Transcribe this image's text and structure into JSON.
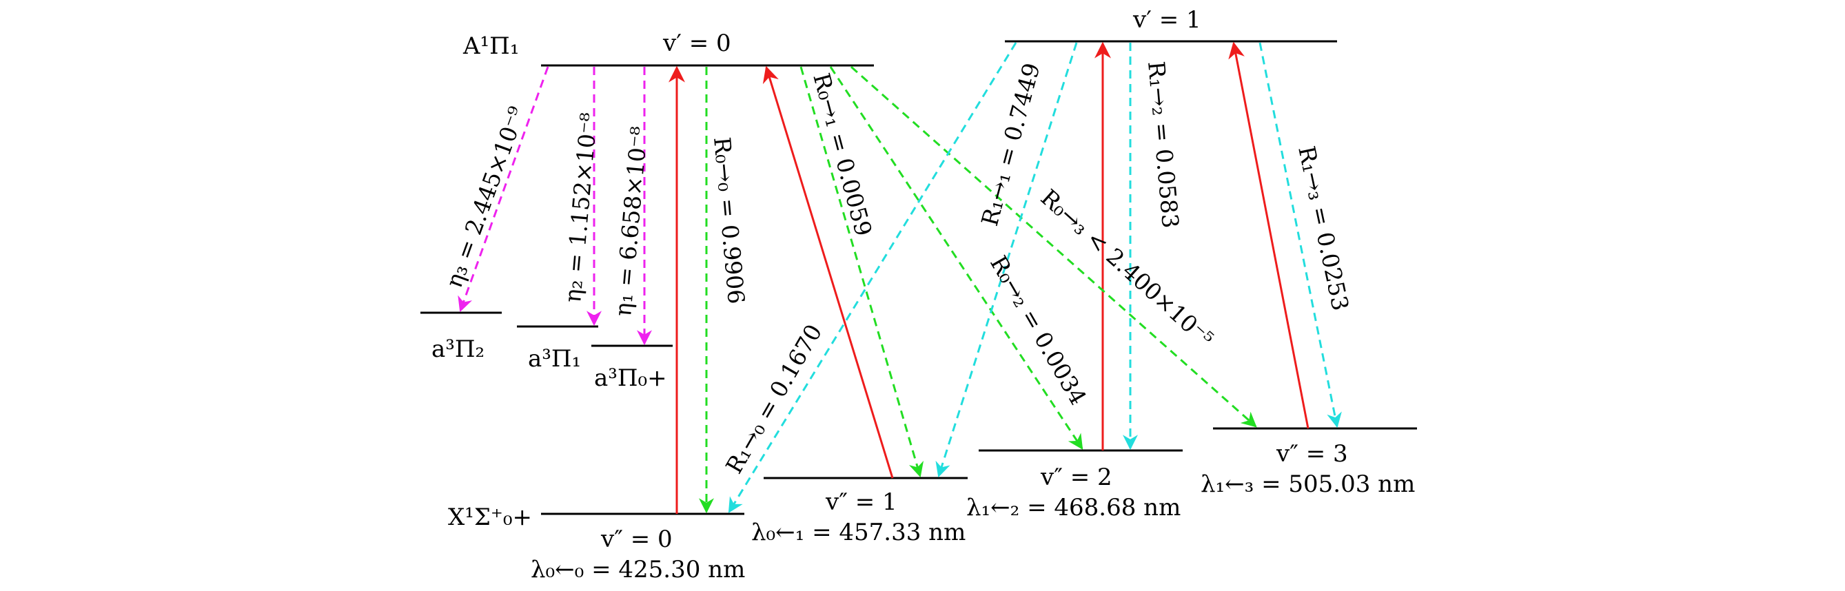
{
  "states": {
    "A": "A¹Π₁",
    "a2": "a³Π₂",
    "a1": "a³Π₁",
    "a0": "a³Π₀+",
    "X": "X¹Σ⁺₀+"
  },
  "levels": {
    "upper0": "v′ = 0",
    "upper1": "v′ = 1",
    "lower0": "v″ = 0",
    "lower1": "v″ = 1",
    "lower2": "v″ = 2",
    "lower3": "v″ = 3"
  },
  "wavelengths": {
    "w0": "λ₀←₀ = 425.30 nm",
    "w1": "λ₀←₁ = 457.33 nm",
    "w2": "λ₁←₂ = 468.68 nm",
    "w3": "λ₁←₃ = 505.03 nm"
  },
  "transitions": {
    "eta3": "η₃ = 2.445×10⁻⁹",
    "eta2": "η₂ = 1.152×10⁻⁸",
    "eta1": "η₁ = 6.658×10⁻⁸",
    "r00": "R₀→₀ = 0.9906",
    "r01": "R₀→₁ = 0.0059",
    "r02": "R₀→₂ = 0.0034",
    "r03": "R₀→₃ < 2.400×10⁻⁵",
    "r10": "R₁→₀ = 0.1670",
    "r11": "R₁→₁ = 0.7449",
    "r12": "R₁→₂ = 0.0583",
    "r13": "R₁→₃ = 0.0253"
  },
  "colors": {
    "pump": "#ee1c1c",
    "decay_v0": "#22dd22",
    "decay_v1": "#22dddd",
    "leak": "#ee22ee"
  }
}
